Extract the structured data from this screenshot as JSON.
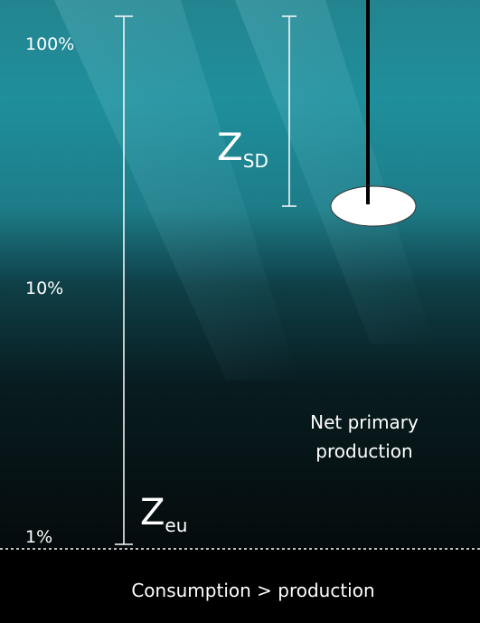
{
  "scale": {
    "top_label": "100%",
    "middle_label": "10%",
    "bottom_label": "1%"
  },
  "secchi_depth": {
    "symbol": "Z",
    "subscript": "SD"
  },
  "euphotic_depth": {
    "symbol": "Z",
    "subscript": "eu"
  },
  "zones": {
    "upper": {
      "lines": [
        "Net primary",
        "production"
      ]
    },
    "lower": {
      "label": "Consumption > production"
    }
  }
}
